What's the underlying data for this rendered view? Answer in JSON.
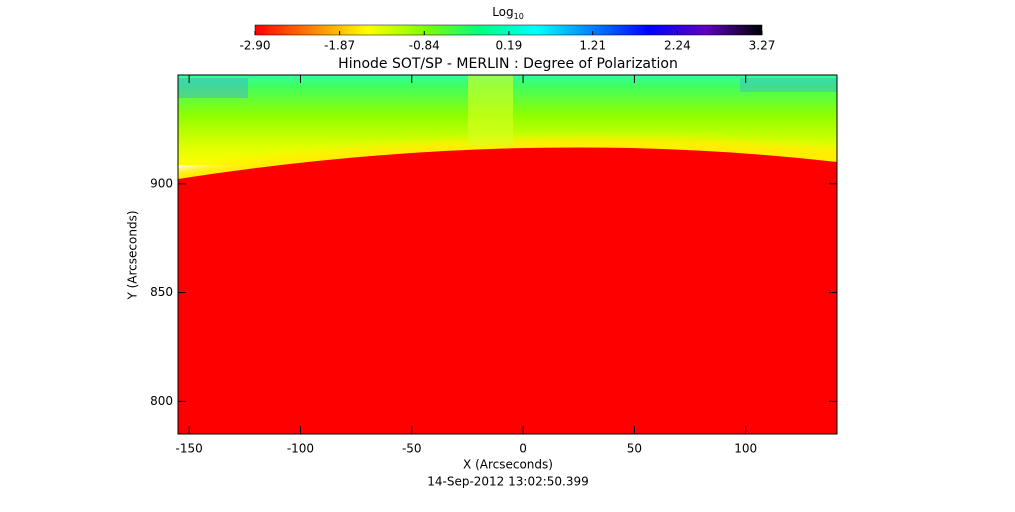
{
  "chart_data": {
    "type": "image",
    "title": "Hinode SOT/SP - MERLIN : Degree of Polarization",
    "xlabel": "X (Arcseconds)",
    "ylabel": "Y (Arcseconds)",
    "annotation": "14-Sep-2012 13:02:50.399",
    "xlim": [
      -155,
      141
    ],
    "ylim": [
      785,
      950
    ],
    "xticks": [
      -150,
      -100,
      -50,
      0,
      50,
      100
    ],
    "yticks": [
      800,
      850,
      900
    ],
    "colorbar": {
      "label": "Log",
      "label_subscript": "10",
      "lim": [
        -2.9,
        3.27
      ],
      "ticks": [
        {
          "value": -2.9,
          "label": "-2.90"
        },
        {
          "value": -1.87,
          "label": "-1.87"
        },
        {
          "value": -0.84,
          "label": "-0.84"
        },
        {
          "value": 0.19,
          "label": "0.19"
        },
        {
          "value": 1.21,
          "label": "1.21"
        },
        {
          "value": 2.24,
          "label": "2.24"
        },
        {
          "value": 3.27,
          "label": "3.27"
        }
      ],
      "colors": [
        "#ff0000",
        "#ff8000",
        "#ffff00",
        "#80ff00",
        "#00ff80",
        "#00ffff",
        "#0080ff",
        "#0000ff",
        "#6000c0",
        "#000000"
      ]
    }
  }
}
